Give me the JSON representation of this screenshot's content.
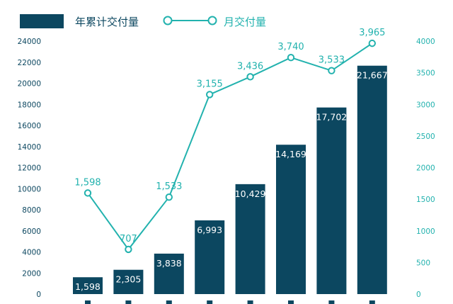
{
  "chart_data": {
    "type": "bar+line",
    "categories": [
      "",
      "",
      "",
      "",
      "",
      "",
      "",
      ""
    ],
    "series": [
      {
        "name": "年累计交付量",
        "type": "bar",
        "axis": "left",
        "values": [
          1598,
          2305,
          3838,
          6993,
          10429,
          14169,
          17702,
          21667
        ],
        "labels": [
          "1,598",
          "2,305",
          "3,838",
          "6,993",
          "10,429",
          "14,169",
          "17,702",
          "21,667"
        ]
      },
      {
        "name": "月交付量",
        "type": "line",
        "axis": "right",
        "values": [
          1598,
          707,
          1533,
          3155,
          3436,
          3740,
          3533,
          3965
        ],
        "labels": [
          "1,598",
          "707",
          "1,533",
          "3,155",
          "3,436",
          "3,740",
          "3,533",
          "3,965"
        ]
      }
    ],
    "y_left": {
      "min": 0,
      "max": 24000,
      "ticks": [
        0,
        2000,
        4000,
        6000,
        8000,
        10000,
        12000,
        14000,
        16000,
        18000,
        20000,
        22000,
        24000
      ]
    },
    "y_right": {
      "min": 0,
      "max": 4000,
      "ticks": [
        0,
        500,
        1000,
        1500,
        2000,
        2500,
        3000,
        3500,
        4000
      ]
    },
    "legend_position": "top-left",
    "grid": false,
    "colors": {
      "bar": "#0c4760",
      "line": "#22b2ae",
      "axis_text_left": "#0c4760",
      "axis_text_right": "#22b2ae"
    }
  }
}
